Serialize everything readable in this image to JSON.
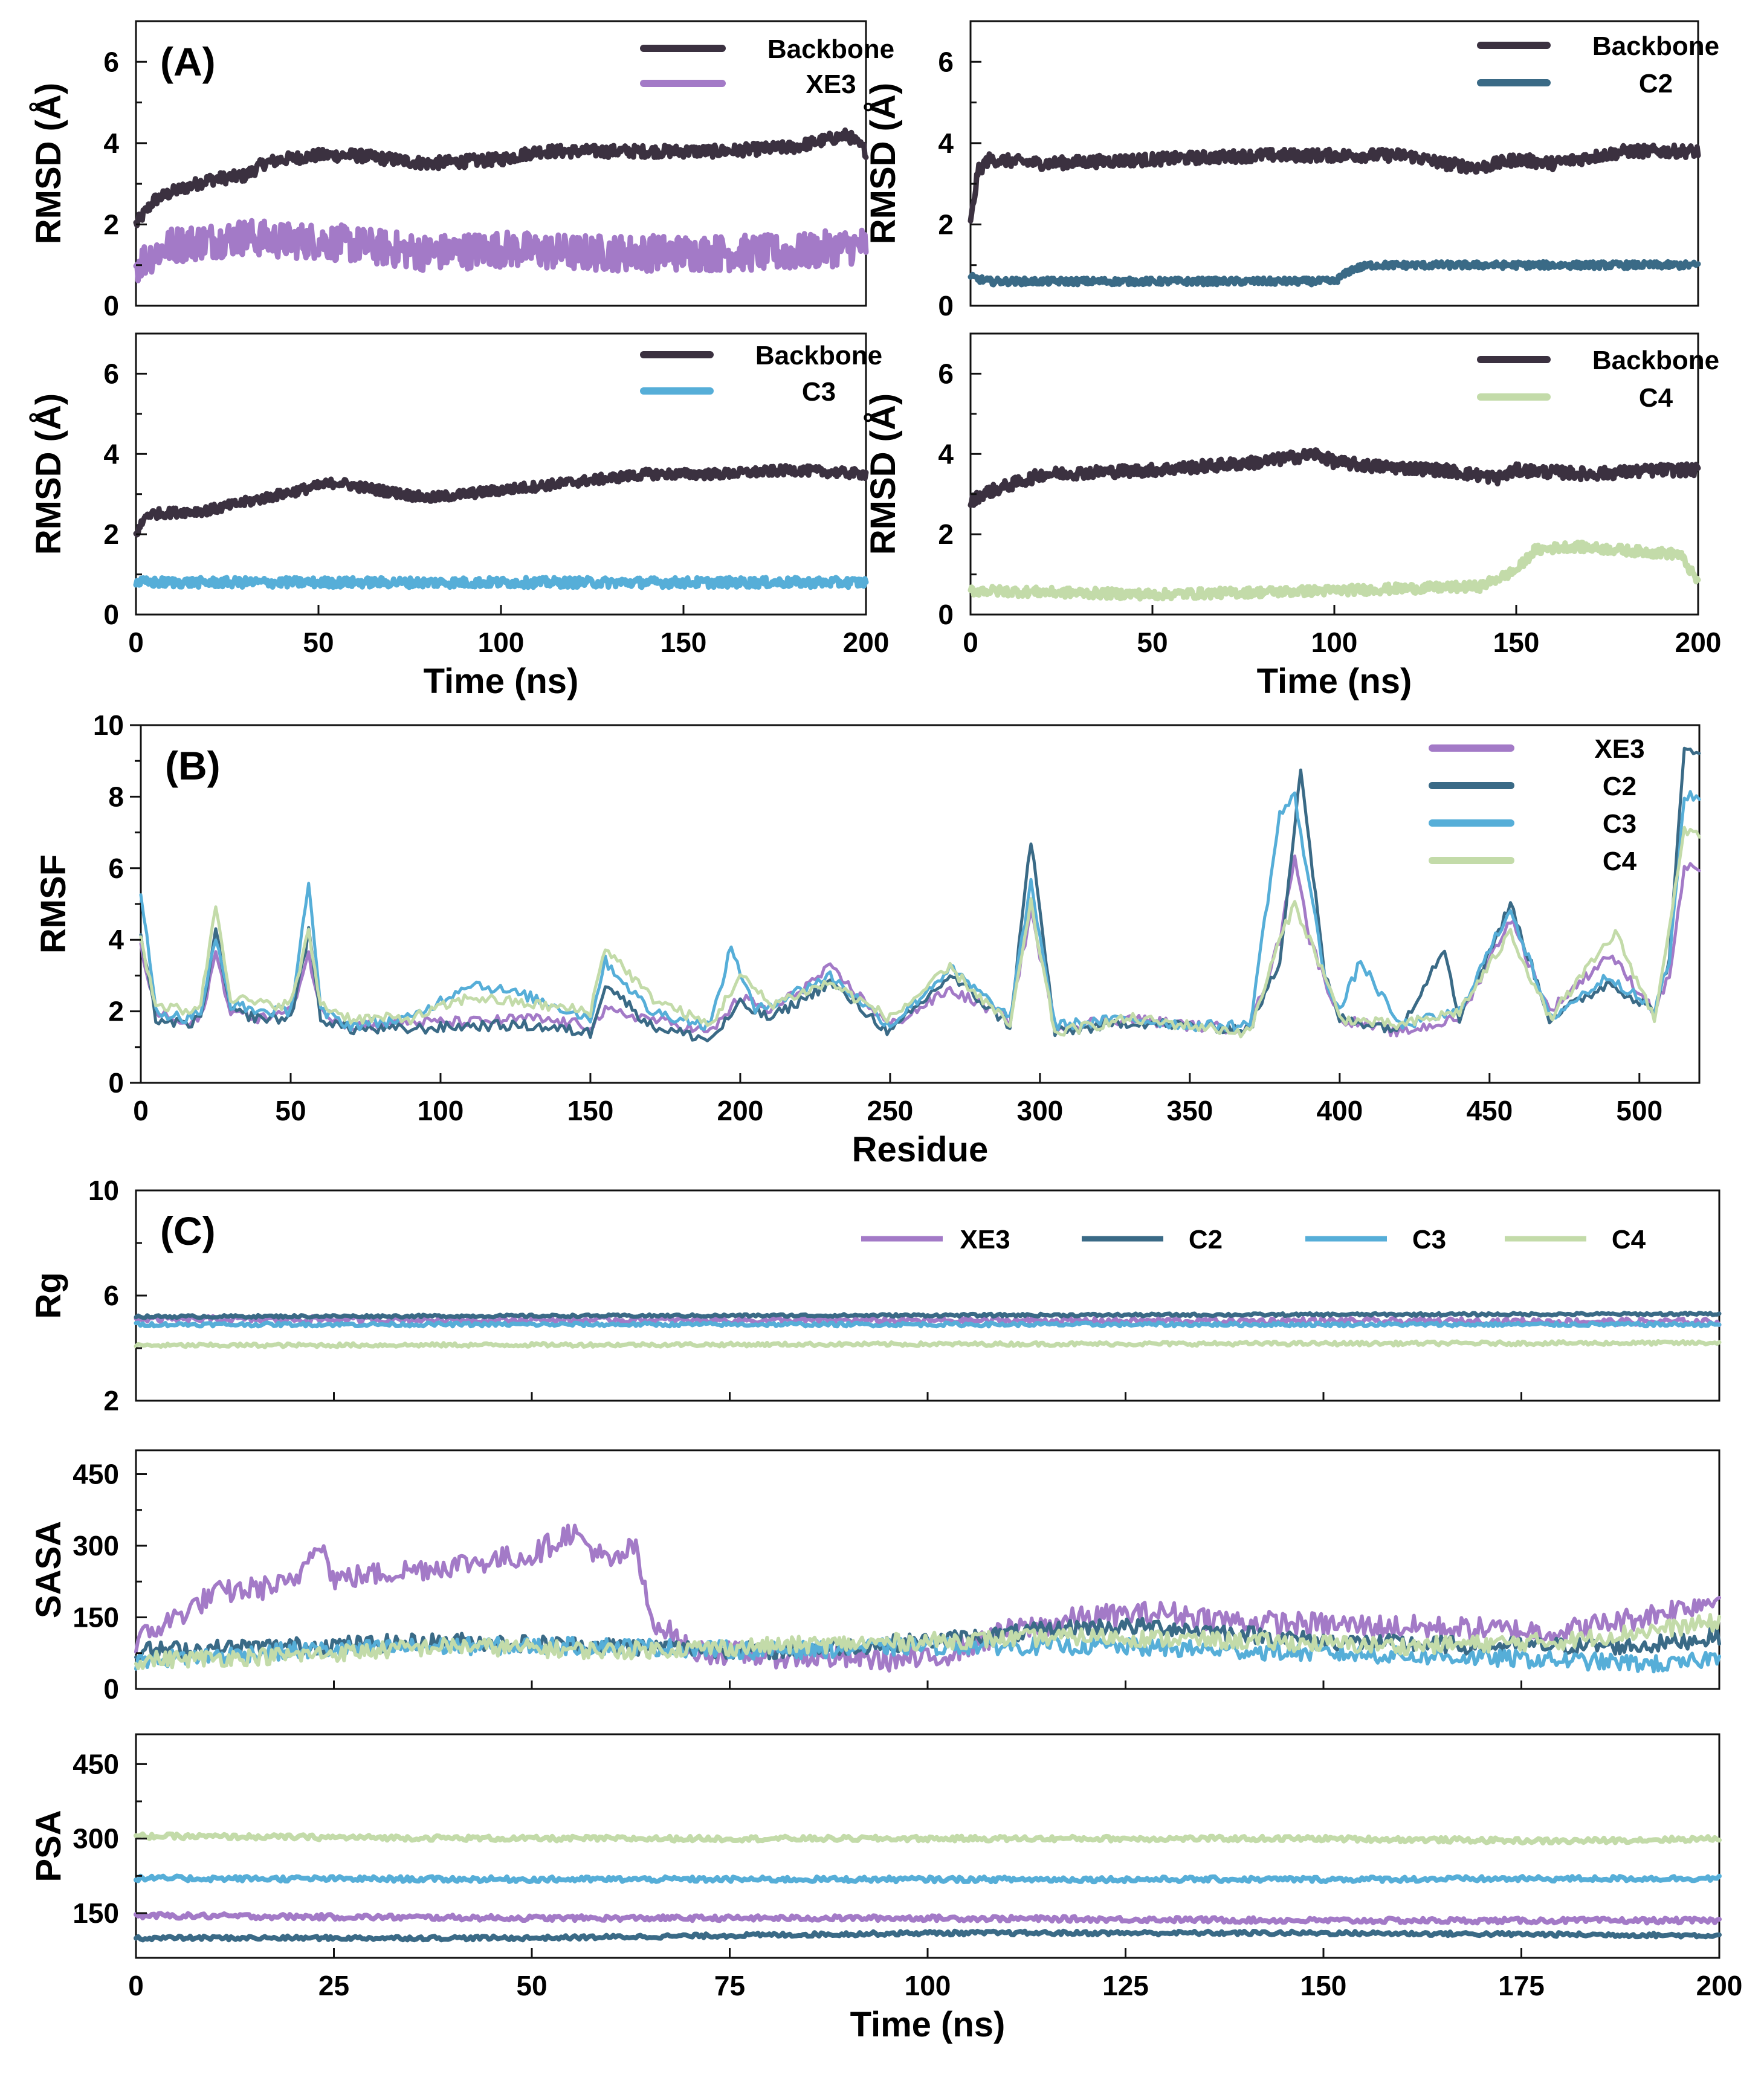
{
  "colors": {
    "backbone": "#3b3140",
    "XE3": "#a37ac7",
    "C2": "#3a6a86",
    "C3": "#56aed8",
    "C4": "#c3dba9"
  },
  "chart_data": [
    {
      "id": "A1",
      "type": "line",
      "panel_label": "(A)",
      "xlabel": "",
      "ylabel": "RMSD (Å)",
      "xlim": [
        0,
        200
      ],
      "ylim": [
        0,
        7
      ],
      "xticks": [],
      "yticks": [
        0,
        2,
        4,
        6
      ],
      "legend": [
        "Backbone",
        "XE3"
      ],
      "series": [
        {
          "name": "Backbone",
          "key": "backbone",
          "x": [
            0,
            5,
            10,
            20,
            30,
            35,
            40,
            50,
            60,
            70,
            80,
            100,
            110,
            120,
            140,
            160,
            180,
            195,
            200
          ],
          "y": [
            2.0,
            2.6,
            2.8,
            3.1,
            3.2,
            3.5,
            3.6,
            3.7,
            3.7,
            3.6,
            3.5,
            3.6,
            3.8,
            3.8,
            3.8,
            3.8,
            3.9,
            4.2,
            3.8
          ],
          "noise": 0.15
        },
        {
          "name": "XE3",
          "key": "XE3",
          "x": [
            0,
            5,
            10,
            20,
            30,
            40,
            50,
            60,
            70,
            80,
            100,
            120,
            140,
            160,
            180,
            200
          ],
          "y": [
            1.0,
            1.3,
            1.5,
            1.6,
            1.7,
            1.6,
            1.6,
            1.5,
            1.4,
            1.3,
            1.4,
            1.3,
            1.3,
            1.3,
            1.3,
            1.5
          ],
          "noise": 0.45
        }
      ]
    },
    {
      "id": "A2",
      "type": "line",
      "panel_label": "",
      "xlabel": "",
      "ylabel": "RMSD (Å)",
      "xlim": [
        0,
        200
      ],
      "ylim": [
        0,
        7
      ],
      "xticks": [],
      "yticks": [
        0,
        2,
        4,
        6
      ],
      "legend": [
        "Backbone",
        "C2"
      ],
      "series": [
        {
          "name": "Backbone",
          "key": "backbone",
          "x": [
            0,
            2,
            5,
            20,
            50,
            80,
            100,
            120,
            130,
            140,
            150,
            160,
            180,
            200
          ],
          "y": [
            2.0,
            3.3,
            3.6,
            3.5,
            3.6,
            3.7,
            3.7,
            3.7,
            3.5,
            3.4,
            3.6,
            3.5,
            3.8,
            3.8
          ],
          "noise": 0.15
        },
        {
          "name": "C2",
          "key": "C2",
          "x": [
            0,
            5,
            50,
            100,
            105,
            110,
            130,
            150,
            180,
            200
          ],
          "y": [
            0.7,
            0.6,
            0.6,
            0.6,
            0.9,
            1.0,
            1.0,
            1.0,
            1.0,
            1.0
          ],
          "noise": 0.08
        }
      ]
    },
    {
      "id": "A3",
      "type": "line",
      "panel_label": "",
      "xlabel": "Time (ns)",
      "ylabel": "RMSD (Å)",
      "xlim": [
        0,
        200
      ],
      "ylim": [
        0,
        7
      ],
      "xticks": [
        0,
        50,
        100,
        150,
        200
      ],
      "yticks": [
        0,
        2,
        4,
        6
      ],
      "legend": [
        "Backbone",
        "C3"
      ],
      "series": [
        {
          "name": "Backbone",
          "key": "backbone",
          "x": [
            0,
            3,
            20,
            40,
            55,
            60,
            80,
            100,
            120,
            140,
            160,
            180,
            200
          ],
          "y": [
            2.0,
            2.5,
            2.6,
            3.0,
            3.3,
            3.2,
            2.9,
            3.1,
            3.3,
            3.5,
            3.5,
            3.6,
            3.5
          ],
          "noise": 0.12
        },
        {
          "name": "C3",
          "key": "C3",
          "x": [
            0,
            50,
            100,
            150,
            200
          ],
          "y": [
            0.8,
            0.8,
            0.8,
            0.8,
            0.8
          ],
          "noise": 0.12
        }
      ]
    },
    {
      "id": "A4",
      "type": "line",
      "panel_label": "",
      "xlabel": "Time (ns)",
      "ylabel": "RMSD (Å)",
      "xlim": [
        0,
        200
      ],
      "ylim": [
        0,
        7
      ],
      "xticks": [
        0,
        50,
        100,
        150,
        200
      ],
      "yticks": [
        0,
        2,
        4,
        6
      ],
      "legend": [
        "Backbone",
        "C4"
      ],
      "series": [
        {
          "name": "Backbone",
          "key": "backbone",
          "x": [
            0,
            3,
            20,
            50,
            80,
            95,
            100,
            110,
            130,
            145,
            150,
            170,
            190,
            200
          ],
          "y": [
            2.8,
            3.0,
            3.5,
            3.6,
            3.8,
            4.0,
            3.8,
            3.7,
            3.6,
            3.4,
            3.6,
            3.5,
            3.6,
            3.6
          ],
          "noise": 0.15
        },
        {
          "name": "C4",
          "key": "C4",
          "x": [
            0,
            50,
            100,
            140,
            150,
            155,
            165,
            180,
            195,
            200
          ],
          "y": [
            0.6,
            0.5,
            0.6,
            0.7,
            1.1,
            1.6,
            1.7,
            1.6,
            1.5,
            0.8
          ],
          "noise": 0.12
        }
      ]
    },
    {
      "id": "B",
      "type": "line",
      "panel_label": "(B)",
      "xlabel": "Residue",
      "ylabel": "RMSF",
      "xlim": [
        0,
        520
      ],
      "ylim": [
        0,
        10
      ],
      "xticks": [
        0,
        50,
        100,
        150,
        200,
        250,
        300,
        350,
        400,
        450,
        500
      ],
      "yticks": [
        0,
        2,
        4,
        6,
        8,
        10
      ],
      "legend": [
        "XE3",
        "C2",
        "C3",
        "C4"
      ],
      "series": [
        {
          "name": "XE3",
          "key": "XE3",
          "x": [
            0,
            5,
            15,
            20,
            25,
            30,
            40,
            50,
            56,
            60,
            70,
            90,
            110,
            130,
            150,
            155,
            170,
            190,
            200,
            210,
            230,
            250,
            270,
            290,
            297,
            305,
            330,
            350,
            370,
            380,
            385,
            390,
            400,
            420,
            440,
            457,
            470,
            490,
            505,
            510,
            515
          ],
          "y": [
            3.8,
            2.0,
            1.6,
            1.8,
            3.6,
            2.0,
            1.8,
            2.0,
            3.6,
            2.0,
            1.6,
            1.7,
            1.7,
            1.8,
            1.6,
            2.0,
            1.8,
            1.4,
            2.4,
            2.0,
            3.2,
            1.6,
            2.6,
            1.8,
            4.8,
            1.6,
            1.8,
            1.6,
            1.5,
            4.0,
            6.4,
            4.0,
            1.8,
            1.4,
            1.8,
            4.6,
            2.0,
            3.6,
            2.0,
            3.0,
            6.0
          ],
          "noise": 0.15
        },
        {
          "name": "C2",
          "key": "C2",
          "x": [
            0,
            5,
            15,
            20,
            25,
            30,
            40,
            50,
            56,
            60,
            70,
            90,
            110,
            130,
            150,
            155,
            170,
            190,
            200,
            210,
            230,
            250,
            270,
            290,
            297,
            305,
            330,
            350,
            370,
            380,
            387,
            395,
            400,
            420,
            435,
            440,
            457,
            470,
            490,
            505,
            510,
            515
          ],
          "y": [
            4.0,
            1.8,
            1.6,
            1.8,
            4.2,
            2.0,
            1.8,
            1.8,
            4.2,
            1.8,
            1.5,
            1.5,
            1.6,
            1.6,
            1.4,
            2.8,
            1.6,
            1.2,
            2.2,
            1.8,
            2.8,
            1.4,
            3.0,
            1.6,
            6.8,
            1.4,
            1.7,
            1.6,
            1.5,
            3.4,
            8.8,
            3.0,
            1.8,
            1.5,
            3.8,
            1.8,
            5.0,
            1.8,
            2.8,
            2.0,
            3.5,
            9.3
          ],
          "noise": 0.15
        },
        {
          "name": "C3",
          "key": "C3",
          "x": [
            0,
            5,
            15,
            20,
            25,
            30,
            40,
            50,
            56,
            60,
            70,
            90,
            110,
            130,
            150,
            155,
            170,
            190,
            197,
            205,
            230,
            250,
            270,
            290,
            297,
            305,
            330,
            350,
            370,
            380,
            385,
            395,
            400,
            407,
            420,
            440,
            457,
            470,
            490,
            505,
            510,
            515
          ],
          "y": [
            5.4,
            2.0,
            1.8,
            2.0,
            4.0,
            2.2,
            2.0,
            2.0,
            5.6,
            2.0,
            1.6,
            1.8,
            2.8,
            2.4,
            1.8,
            3.4,
            2.0,
            1.6,
            3.8,
            2.0,
            3.0,
            1.6,
            3.2,
            1.8,
            5.6,
            1.6,
            1.8,
            1.6,
            1.6,
            7.5,
            8.0,
            3.0,
            2.0,
            3.4,
            1.6,
            2.0,
            4.9,
            1.8,
            3.0,
            2.0,
            3.4,
            8.0
          ],
          "noise": 0.15
        },
        {
          "name": "C4",
          "key": "C4",
          "x": [
            0,
            5,
            15,
            20,
            25,
            30,
            40,
            50,
            56,
            60,
            70,
            90,
            110,
            130,
            150,
            155,
            170,
            190,
            200,
            210,
            230,
            250,
            270,
            290,
            297,
            305,
            330,
            350,
            370,
            380,
            385,
            395,
            400,
            420,
            440,
            457,
            470,
            492,
            505,
            515
          ],
          "y": [
            4.0,
            2.2,
            2.0,
            2.2,
            5.0,
            2.4,
            2.2,
            2.2,
            4.2,
            2.2,
            1.8,
            1.8,
            2.4,
            2.2,
            2.0,
            3.8,
            2.4,
            1.6,
            3.0,
            2.2,
            2.8,
            1.8,
            3.2,
            1.6,
            5.0,
            1.4,
            1.8,
            1.6,
            1.4,
            4.0,
            5.0,
            3.0,
            1.8,
            1.6,
            2.0,
            4.2,
            1.8,
            4.2,
            1.8,
            7.0
          ],
          "noise": 0.15
        }
      ]
    },
    {
      "id": "C1",
      "type": "line",
      "panel_label": "(C)",
      "xlabel": "",
      "ylabel": "Rg",
      "xlim": [
        0,
        200
      ],
      "ylim": [
        2,
        10
      ],
      "xticks": [],
      "yticks": [
        2,
        6,
        10
      ],
      "legend": [
        "XE3",
        "C2",
        "C3",
        "C4"
      ],
      "series": [
        {
          "name": "XE3",
          "key": "XE3",
          "x": [
            0,
            200
          ],
          "y": [
            5.1,
            5.0
          ],
          "noise": 0.12
        },
        {
          "name": "C2",
          "key": "C2",
          "x": [
            0,
            200
          ],
          "y": [
            5.2,
            5.3
          ],
          "noise": 0.05
        },
        {
          "name": "C3",
          "key": "C3",
          "x": [
            0,
            200
          ],
          "y": [
            4.9,
            4.9
          ],
          "noise": 0.07
        },
        {
          "name": "C4",
          "key": "C4",
          "x": [
            0,
            200
          ],
          "y": [
            4.1,
            4.2
          ],
          "noise": 0.07
        }
      ]
    },
    {
      "id": "C2",
      "type": "line",
      "panel_label": "",
      "xlabel": "",
      "ylabel": "SASA",
      "xlim": [
        0,
        200
      ],
      "ylim": [
        0,
        500
      ],
      "xticks": [],
      "yticks": [
        0,
        150,
        300,
        450
      ],
      "legend": [],
      "series": [
        {
          "name": "XE3",
          "key": "XE3",
          "x": [
            0,
            5,
            10,
            20,
            23,
            25,
            30,
            40,
            50,
            55,
            60,
            63,
            65,
            68,
            70,
            80,
            100,
            110,
            120,
            130,
            140,
            160,
            180,
            190,
            200
          ],
          "y": [
            100,
            150,
            200,
            220,
            320,
            230,
            240,
            260,
            280,
            330,
            260,
            300,
            150,
            110,
            80,
            70,
            60,
            120,
            150,
            160,
            140,
            130,
            120,
            150,
            190
          ],
          "noise": 25
        },
        {
          "name": "C2",
          "key": "C2",
          "x": [
            0,
            20,
            40,
            60,
            80,
            100,
            120,
            130,
            150,
            170,
            190,
            200
          ],
          "y": [
            80,
            90,
            100,
            90,
            80,
            100,
            130,
            130,
            100,
            90,
            90,
            110
          ],
          "noise": 18
        },
        {
          "name": "C3",
          "key": "C3",
          "x": [
            0,
            20,
            40,
            60,
            80,
            100,
            120,
            140,
            160,
            180,
            195,
            200
          ],
          "y": [
            60,
            80,
            90,
            90,
            80,
            90,
            90,
            80,
            70,
            60,
            50,
            70
          ],
          "noise": 18
        },
        {
          "name": "C4",
          "key": "C4",
          "x": [
            0,
            20,
            40,
            60,
            80,
            100,
            120,
            140,
            160,
            180,
            200
          ],
          "y": [
            60,
            70,
            90,
            80,
            90,
            100,
            110,
            100,
            90,
            100,
            140
          ],
          "noise": 18
        }
      ]
    },
    {
      "id": "C3",
      "type": "line",
      "panel_label": "",
      "xlabel": "Time (ns)",
      "ylabel": "PSA",
      "xlim": [
        0,
        200
      ],
      "ylim": [
        60,
        510
      ],
      "xticks": [
        0,
        25,
        50,
        75,
        100,
        125,
        150,
        175,
        200
      ],
      "yticks": [
        150,
        300,
        450
      ],
      "legend": [],
      "series": [
        {
          "name": "XE3",
          "key": "XE3",
          "x": [
            0,
            50,
            100,
            150,
            200
          ],
          "y": [
            145,
            140,
            140,
            135,
            135
          ],
          "noise": 5
        },
        {
          "name": "C2",
          "key": "C2",
          "x": [
            0,
            50,
            100,
            150,
            200
          ],
          "y": [
            100,
            100,
            110,
            110,
            105
          ],
          "noise": 4
        },
        {
          "name": "C3",
          "key": "C3",
          "x": [
            0,
            50,
            100,
            150,
            200
          ],
          "y": [
            220,
            218,
            218,
            218,
            220
          ],
          "noise": 5
        },
        {
          "name": "C4",
          "key": "C4",
          "x": [
            0,
            50,
            100,
            150,
            180,
            200
          ],
          "y": [
            305,
            300,
            300,
            300,
            295,
            300
          ],
          "noise": 5
        }
      ]
    }
  ]
}
